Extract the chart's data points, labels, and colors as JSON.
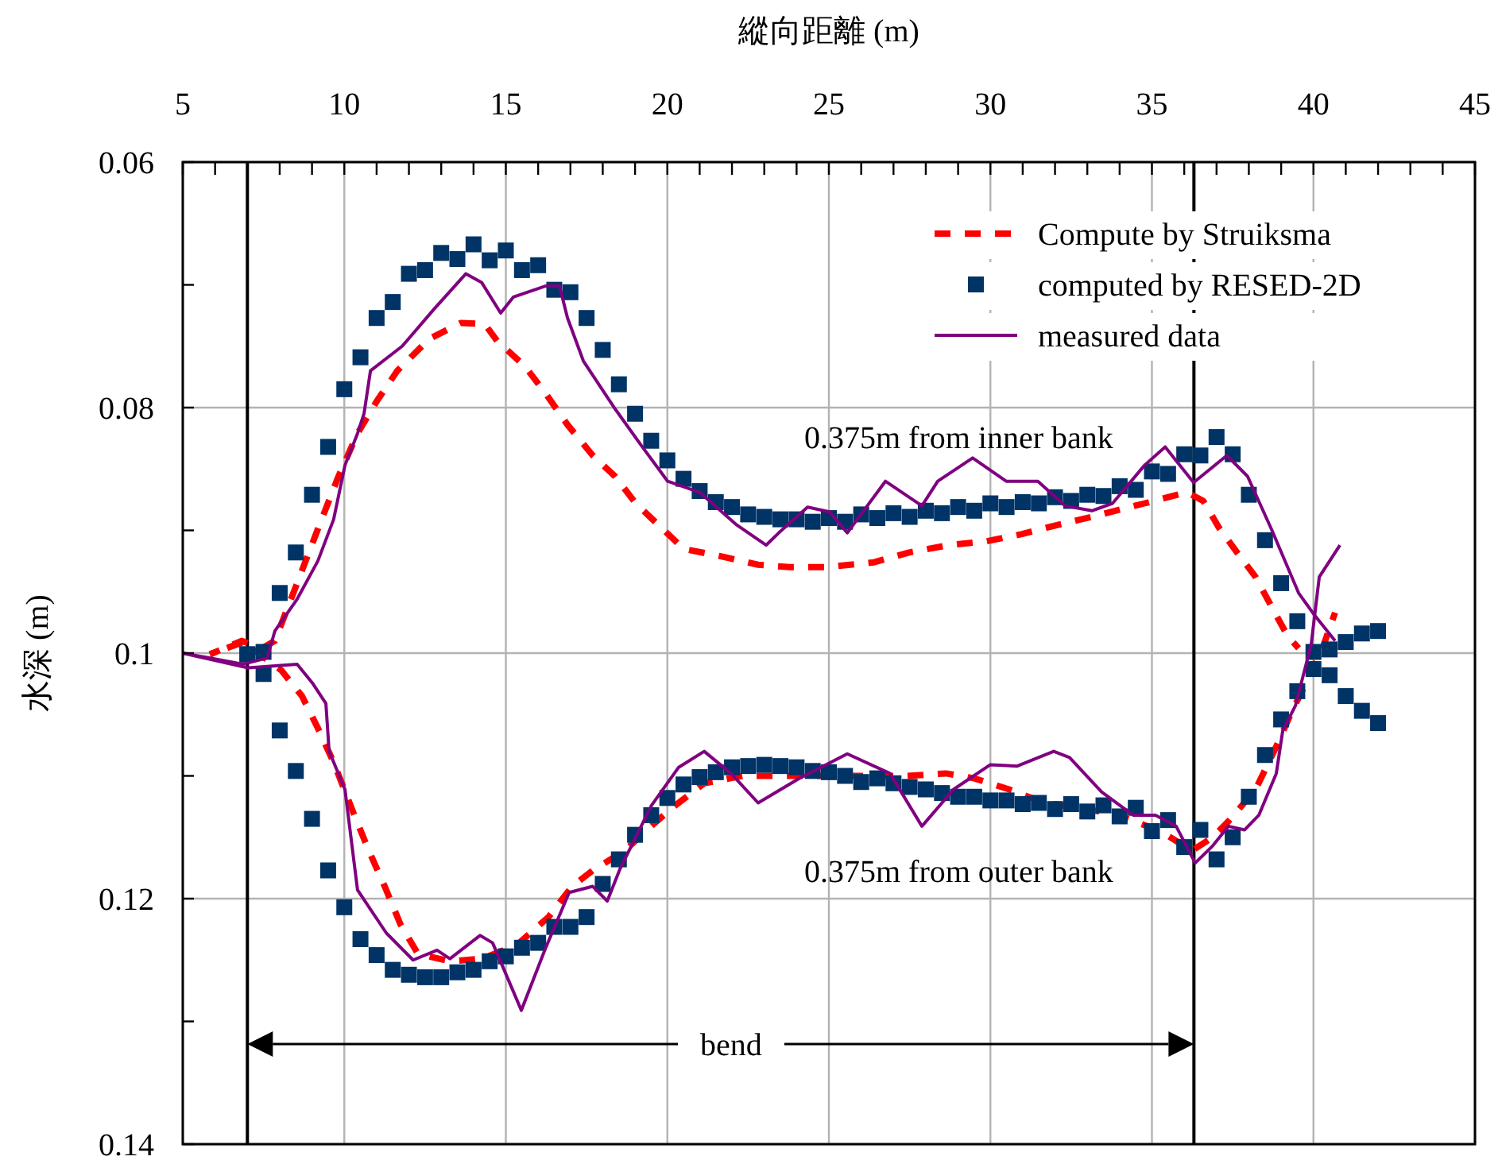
{
  "chart_data": {
    "type": "line",
    "xlabel": "縱向距離 (m)",
    "ylabel": "水深 (m)",
    "xlim": [
      5,
      45
    ],
    "ylim": [
      0.14,
      0.06
    ],
    "xticks": [
      5,
      {
        "value": 6,
        "label": null
      },
      {
        "value": 7,
        "label": null
      },
      {
        "value": 8,
        "label": null
      },
      {
        "value": 9,
        "label": null
      },
      10,
      {
        "value": 11,
        "label": null
      },
      {
        "value": 12,
        "label": null
      },
      {
        "value": 13,
        "label": null
      },
      {
        "value": 14,
        "label": null
      },
      15,
      {
        "value": 16,
        "label": null
      },
      {
        "value": 17,
        "label": null
      },
      {
        "value": 18,
        "label": null
      },
      {
        "value": 19,
        "label": null
      },
      20,
      {
        "value": 21,
        "label": null
      },
      {
        "value": 22,
        "label": null
      },
      {
        "value": 23,
        "label": null
      },
      {
        "value": 24,
        "label": null
      },
      25,
      {
        "value": 26,
        "label": null
      },
      {
        "value": 27,
        "label": null
      },
      {
        "value": 28,
        "label": null
      },
      {
        "value": 29,
        "label": null
      },
      30,
      {
        "value": 31,
        "label": null
      },
      {
        "value": 32,
        "label": null
      },
      {
        "value": 33,
        "label": null
      },
      {
        "value": 34,
        "label": null
      },
      35,
      {
        "value": 36,
        "label": null
      },
      {
        "value": 37,
        "label": null
      },
      {
        "value": 38,
        "label": null
      },
      {
        "value": 39,
        "label": null
      },
      40,
      {
        "value": 41,
        "label": null
      },
      {
        "value": 42,
        "label": null
      },
      {
        "value": 43,
        "label": null
      },
      {
        "value": 44,
        "label": null
      },
      45
    ],
    "yticks": [
      0.06,
      {
        "value": 0.07,
        "label": null
      },
      0.08,
      {
        "value": 0.09,
        "label": null
      },
      0.1,
      {
        "value": 0.11,
        "label": null
      },
      0.12,
      {
        "value": 0.13,
        "label": null
      },
      0.14
    ],
    "grid": true,
    "legend": "top right",
    "series": [
      {
        "name": "Compute by Struiksma",
        "line_style": "dashed",
        "color": "#ff0000",
        "x": [
          5.84,
          6.82,
          7.46,
          7.85,
          8.54,
          9.18,
          9.82,
          10.41,
          11.0,
          11.64,
          12.63,
          13.61,
          14.35,
          14.74,
          15.58,
          16.22,
          16.91,
          17.69,
          18.38,
          19.02,
          19.86,
          20.5,
          21.63,
          22.81,
          23.79,
          24.93,
          26.4,
          27.48,
          28.71,
          29.85,
          30.98,
          32.16,
          33.14,
          34.77,
          36.09,
          36.59,
          37.08,
          37.72,
          38.21,
          38.7,
          39.2,
          39.54
        ],
        "values": [
          0.1001,
          0.099,
          0.0996,
          0.099,
          0.0943,
          0.0899,
          0.0856,
          0.0821,
          0.0795,
          0.077,
          0.0744,
          0.0731,
          0.0732,
          0.0746,
          0.0766,
          0.0788,
          0.0814,
          0.0839,
          0.0856,
          0.0878,
          0.0899,
          0.0915,
          0.0921,
          0.0928,
          0.093,
          0.093,
          0.0926,
          0.0918,
          0.0912,
          0.0909,
          0.0903,
          0.0895,
          0.0889,
          0.0878,
          0.0869,
          0.0876,
          0.0898,
          0.0921,
          0.0938,
          0.0962,
          0.0986,
          0.0996
        ]
      },
      {
        "line_style": "dashed",
        "color": "#ff0000",
        "x": [
          5.84,
          6.87,
          8.05,
          8.69,
          9.18,
          9.67,
          10.31,
          10.76,
          11.25,
          11.74,
          12.28,
          13.27,
          14.25,
          15.33,
          16.32,
          17.05,
          17.69,
          18.68,
          19.37,
          20.15,
          21.14,
          22.32,
          23.45,
          24.58,
          25.57,
          27.39,
          28.62,
          29.5,
          30.58,
          31.67,
          32.8,
          33.93,
          35.26,
          36.24,
          36.88,
          37.37,
          38.21,
          38.85,
          39.34,
          39.83,
          40.28,
          40.67
        ],
        "values": [
          0.1001,
          0.0991,
          0.1014,
          0.1035,
          0.1061,
          0.1089,
          0.1132,
          0.1161,
          0.119,
          0.1221,
          0.1245,
          0.1251,
          0.1249,
          0.1238,
          0.1215,
          0.119,
          0.1177,
          0.1161,
          0.1144,
          0.1126,
          0.1106,
          0.11,
          0.11,
          0.11,
          0.11,
          0.11,
          0.1098,
          0.1102,
          0.1111,
          0.1122,
          0.1126,
          0.1132,
          0.1145,
          0.1161,
          0.115,
          0.1137,
          0.1111,
          0.1076,
          0.1047,
          0.1021,
          0.0996,
          0.0967
        ]
      },
      {
        "name": "computed by RESED-2D",
        "type": "scatter",
        "marker": "square",
        "color": "#003366",
        "x": [
          7,
          7.5,
          8,
          8.5,
          9,
          9.5,
          10,
          10.5,
          11,
          11.5,
          12,
          12.5,
          13,
          13.5,
          14,
          14.5,
          15,
          15.5,
          16,
          16.5,
          17,
          17.5,
          18,
          18.5,
          19,
          19.5,
          20,
          20.5,
          21,
          21.5,
          22,
          22.5,
          23,
          23.5,
          24,
          24.5,
          25,
          25.5,
          26,
          26.5,
          27,
          27.5,
          28,
          28.5,
          29,
          29.5,
          30,
          30.5,
          31,
          31.5,
          32,
          32.5,
          33,
          33.5,
          34,
          34.5,
          35,
          35.5,
          36,
          36.5,
          37,
          37.5,
          38,
          38.5,
          39,
          39.5,
          40,
          40.5,
          41,
          41.5,
          42
        ],
        "values": [
          0.1001,
          0.0999,
          0.0951,
          0.0918,
          0.0871,
          0.0832,
          0.0785,
          0.0759,
          0.0727,
          0.0714,
          0.0691,
          0.0688,
          0.0674,
          0.0679,
          0.0667,
          0.068,
          0.0672,
          0.0688,
          0.0684,
          0.0704,
          0.0706,
          0.0727,
          0.0753,
          0.0781,
          0.0805,
          0.0827,
          0.0843,
          0.0858,
          0.0868,
          0.0877,
          0.0881,
          0.0887,
          0.0889,
          0.0891,
          0.0891,
          0.0893,
          0.089,
          0.0893,
          0.0887,
          0.089,
          0.0886,
          0.0889,
          0.0884,
          0.0886,
          0.0881,
          0.0884,
          0.0878,
          0.0881,
          0.0877,
          0.0878,
          0.0873,
          0.0876,
          0.0871,
          0.0872,
          0.0864,
          0.0867,
          0.0852,
          0.0854,
          0.0838,
          0.0839,
          0.0824,
          0.0838,
          0.0871,
          0.0908,
          0.0943,
          0.0974,
          0.0999,
          0.1018,
          0.1035,
          0.1047,
          0.1057
        ]
      },
      {
        "type": "scatter",
        "marker": "square",
        "color": "#003366",
        "x": [
          7,
          7.5,
          8,
          8.5,
          9,
          9.5,
          10,
          10.5,
          11,
          11.5,
          12,
          12.5,
          13,
          13.5,
          14,
          14.5,
          15,
          15.5,
          16,
          16.5,
          17,
          17.5,
          18,
          18.5,
          19,
          19.5,
          20,
          20.5,
          21,
          21.5,
          22,
          22.5,
          23,
          23.5,
          24,
          24.5,
          25,
          25.5,
          26,
          26.5,
          27,
          27.5,
          28,
          28.5,
          29,
          29.5,
          30,
          30.5,
          31,
          31.5,
          32,
          32.5,
          33,
          33.5,
          34,
          34.5,
          35,
          35.5,
          36,
          36.5,
          37,
          37.5,
          38,
          38.5,
          39,
          39.5,
          40,
          40.5,
          41,
          41.5,
          42
        ],
        "values": [
          0.1001,
          0.1017,
          0.1063,
          0.1096,
          0.1135,
          0.1177,
          0.1207,
          0.1233,
          0.1246,
          0.1258,
          0.1262,
          0.1264,
          0.1264,
          0.126,
          0.1258,
          0.1251,
          0.1247,
          0.124,
          0.1236,
          0.1223,
          0.1223,
          0.1215,
          0.1188,
          0.1168,
          0.1148,
          0.1132,
          0.1118,
          0.1107,
          0.1101,
          0.1097,
          0.1093,
          0.1092,
          0.1091,
          0.1092,
          0.1093,
          0.1096,
          0.1097,
          0.11,
          0.1105,
          0.1102,
          0.1106,
          0.1109,
          0.1111,
          0.1114,
          0.1117,
          0.1117,
          0.112,
          0.112,
          0.1123,
          0.1122,
          0.1127,
          0.1123,
          0.1129,
          0.1124,
          0.1133,
          0.1126,
          0.1145,
          0.1136,
          0.1158,
          0.1144,
          0.1168,
          0.115,
          0.1117,
          0.1083,
          0.1054,
          0.1031,
          0.1013,
          0.0997,
          0.0991,
          0.0984,
          0.0982
        ]
      },
      {
        "name": "measured data",
        "line_style": "solid",
        "color": "#800080",
        "x": [
          5.0,
          6.87,
          7.61,
          7.85,
          8.54,
          9.18,
          9.67,
          10.02,
          10.41,
          10.61,
          10.81,
          11.79,
          12.77,
          13.76,
          14.25,
          14.84,
          15.23,
          16.22,
          16.66,
          16.91,
          17.4,
          18.38,
          19.17,
          20.01,
          21.0,
          22.12,
          23.06,
          23.45,
          24.34,
          25.02,
          25.57,
          26.75,
          27.88,
          28.37,
          29.45,
          30.49,
          31.47,
          32.31,
          33.14,
          33.78,
          34.77,
          35.41,
          36.29,
          37.32,
          37.96,
          38.7,
          39.54,
          40.03,
          40.67
        ],
        "values": [
          0.1,
          0.1009,
          0.1004,
          0.0982,
          0.0956,
          0.0925,
          0.0891,
          0.0847,
          0.0821,
          0.0805,
          0.077,
          0.075,
          0.072,
          0.0691,
          0.0698,
          0.0723,
          0.071,
          0.0701,
          0.0701,
          0.0727,
          0.0762,
          0.0801,
          0.083,
          0.086,
          0.0869,
          0.0895,
          0.0912,
          0.0902,
          0.0881,
          0.0885,
          0.0902,
          0.086,
          0.088,
          0.086,
          0.0841,
          0.086,
          0.086,
          0.088,
          0.0884,
          0.0878,
          0.0847,
          0.0832,
          0.0861,
          0.0839,
          0.0856,
          0.0899,
          0.0951,
          0.0969,
          0.099
        ]
      },
      {
        "line_style": "solid",
        "color": "#800080",
        "x": [
          5.0,
          7.02,
          8.54,
          9.03,
          9.43,
          9.53,
          10.02,
          10.41,
          11.3,
          12.13,
          12.87,
          13.27,
          14.2,
          14.59,
          15.48,
          16.22,
          16.96,
          17.69,
          18.14,
          18.53,
          19.51,
          20.35,
          21.14,
          21.97,
          22.81,
          24.09,
          25.57,
          26.89,
          27.88,
          28.86,
          29.99,
          30.83,
          31.96,
          32.45,
          33.44,
          34.42,
          35.11,
          35.75,
          36.34,
          36.88,
          37.37,
          37.87,
          38.31,
          38.85,
          39.05,
          39.44,
          39.93,
          40.18,
          40.82
        ],
        "values": [
          0.1,
          0.1012,
          0.1009,
          0.1025,
          0.1041,
          0.108,
          0.1111,
          0.1193,
          0.1228,
          0.125,
          0.1242,
          0.1249,
          0.123,
          0.1236,
          0.1291,
          0.1241,
          0.1195,
          0.119,
          0.1202,
          0.1176,
          0.1124,
          0.1093,
          0.108,
          0.1098,
          0.1122,
          0.1102,
          0.1082,
          0.1098,
          0.1141,
          0.1111,
          0.1091,
          0.1092,
          0.108,
          0.1085,
          0.1113,
          0.1132,
          0.1132,
          0.1141,
          0.1171,
          0.1157,
          0.1141,
          0.1144,
          0.1132,
          0.1098,
          0.1063,
          0.1043,
          0.0993,
          0.0938,
          0.0912
        ]
      }
    ],
    "ref_lines": [
      {
        "axis": "x",
        "value": 7,
        "color": "#000000"
      },
      {
        "axis": "x",
        "value": 36.3,
        "color": "#000000"
      }
    ],
    "annotations": [
      "0.375m from inner bank",
      "0.375m from outer bank",
      "bend"
    ]
  }
}
